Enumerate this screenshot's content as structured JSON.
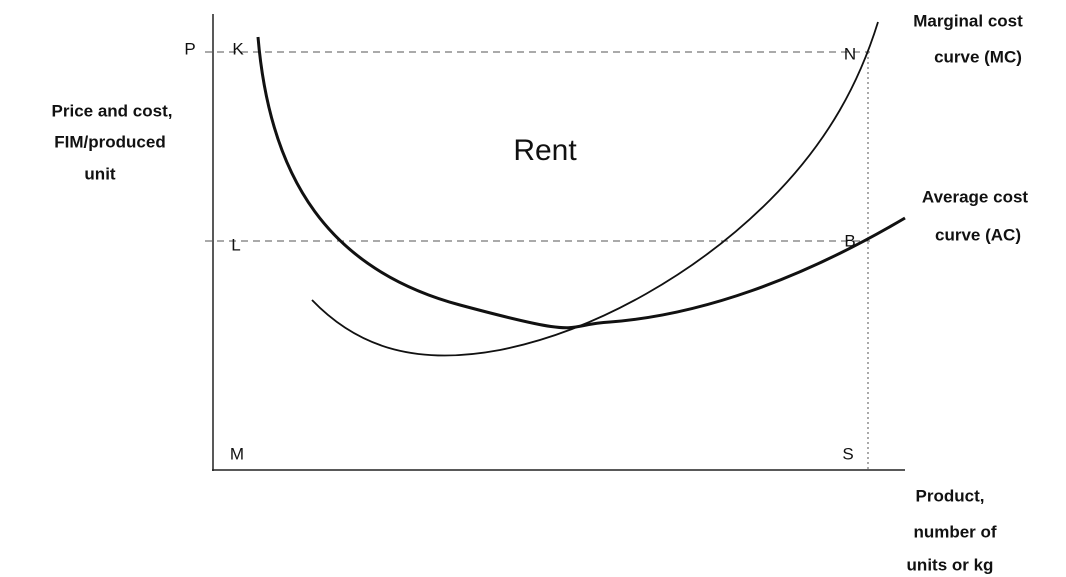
{
  "diagram": {
    "y_axis_label": [
      "Price and cost,",
      "FIM/produced",
      "unit"
    ],
    "x_axis_label": [
      "Product,",
      "number of",
      "units or kg"
    ],
    "mc_label": [
      "Marginal cost",
      "curve (MC)"
    ],
    "ac_label": [
      "Average cost",
      "curve (AC)"
    ],
    "area_label": "Rent",
    "points": {
      "P": "P",
      "K": "K",
      "N": "N",
      "L": "L",
      "B": "B",
      "M": "M",
      "S": "S"
    }
  }
}
